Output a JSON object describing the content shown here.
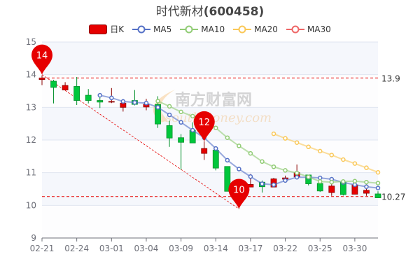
{
  "title": {
    "name": "时代新材",
    "code": "(600458)"
  },
  "legend": [
    {
      "label": "日K",
      "color": "#e60000"
    },
    {
      "label": "MA5",
      "color": "#5470c6"
    },
    {
      "label": "MA10",
      "color": "#91cc75"
    },
    {
      "label": "MA20",
      "color": "#fac858"
    },
    {
      "label": "MA30",
      "color": "#ee6666"
    }
  ],
  "watermark": {
    "cn": "南方财富网",
    "en": "southmoney.com"
  },
  "chart_data": {
    "type": "candlestick",
    "title": "时代新材(600458)",
    "ylim": [
      9,
      15
    ],
    "yticks": [
      9,
      10,
      11,
      12,
      13,
      14,
      15
    ],
    "xtick_labels": [
      "02-21",
      "02-24",
      "03-01",
      "03-04",
      "03-09",
      "03-14",
      "03-17",
      "03-22",
      "03-25",
      "03-30"
    ],
    "xtick_every": 3,
    "up_color": "#e60000",
    "down_color": "#00c73c",
    "candles": [
      {
        "o": 13.85,
        "c": 13.9,
        "h": 13.98,
        "l": 13.68
      },
      {
        "o": 13.8,
        "c": 13.61,
        "h": 13.84,
        "l": 13.12
      },
      {
        "o": 13.53,
        "c": 13.67,
        "h": 13.77,
        "l": 13.52
      },
      {
        "o": 13.64,
        "c": 13.21,
        "h": 13.93,
        "l": 13.07
      },
      {
        "o": 13.37,
        "c": 13.21,
        "h": 13.56,
        "l": 13.12
      },
      {
        "o": 13.21,
        "c": 13.16,
        "h": 13.32,
        "l": 12.98
      },
      {
        "o": 13.16,
        "c": 13.18,
        "h": 13.59,
        "l": 13.13
      },
      {
        "o": 13.0,
        "c": 13.13,
        "h": 13.14,
        "l": 12.87
      },
      {
        "o": 13.21,
        "c": 13.09,
        "h": 13.53,
        "l": 13.06
      },
      {
        "o": 13.01,
        "c": 13.09,
        "h": 13.26,
        "l": 12.91
      },
      {
        "o": 13.09,
        "c": 12.49,
        "h": 13.34,
        "l": 12.37
      },
      {
        "o": 12.44,
        "c": 12.06,
        "h": 12.59,
        "l": 11.79
      },
      {
        "o": 12.07,
        "c": 11.93,
        "h": 12.18,
        "l": 11.09
      },
      {
        "o": 12.3,
        "c": 11.91,
        "h": 12.54,
        "l": 11.91
      },
      {
        "o": 11.59,
        "c": 11.74,
        "h": 11.96,
        "l": 11.39
      },
      {
        "o": 11.69,
        "c": 11.14,
        "h": 11.76,
        "l": 11.07
      },
      {
        "o": 11.19,
        "c": 10.43,
        "h": 11.19,
        "l": 10.43
      },
      {
        "o": 10.45,
        "c": 10.3,
        "h": 10.52,
        "l": 9.89
      },
      {
        "o": 10.56,
        "c": 10.64,
        "h": 10.96,
        "l": 10.56
      },
      {
        "o": 10.71,
        "c": 10.57,
        "h": 10.76,
        "l": 10.39
      },
      {
        "o": 10.56,
        "c": 10.81,
        "h": 10.84,
        "l": 10.56
      },
      {
        "o": 10.8,
        "c": 10.84,
        "h": 10.91,
        "l": 10.7
      },
      {
        "o": 10.87,
        "c": 11.0,
        "h": 11.25,
        "l": 10.84
      },
      {
        "o": 10.93,
        "c": 10.66,
        "h": 10.93,
        "l": 10.61
      },
      {
        "o": 10.67,
        "c": 10.44,
        "h": 10.67,
        "l": 10.41
      },
      {
        "o": 10.39,
        "c": 10.59,
        "h": 10.7,
        "l": 10.29
      },
      {
        "o": 10.71,
        "c": 10.33,
        "h": 10.71,
        "l": 10.3
      },
      {
        "o": 10.34,
        "c": 10.63,
        "h": 10.66,
        "l": 10.34
      },
      {
        "o": 10.37,
        "c": 10.46,
        "h": 10.7,
        "l": 10.29
      },
      {
        "o": 10.35,
        "c": 10.23,
        "h": 10.43,
        "l": 10.23
      }
    ],
    "series": [
      {
        "name": "MA5",
        "start": 5,
        "values": [
          13.37,
          13.29,
          13.18,
          13.15,
          13.13,
          13.0,
          12.77,
          12.54,
          12.3,
          12.07,
          11.74,
          11.38,
          11.11,
          10.88,
          10.66,
          10.63,
          10.76,
          10.86,
          10.86,
          10.84,
          10.8,
          10.7,
          10.63,
          10.57,
          10.53
        ]
      },
      {
        "name": "MA10",
        "start": 10,
        "values": [
          13.19,
          13.03,
          12.86,
          12.73,
          12.57,
          12.37,
          12.07,
          11.82,
          11.59,
          11.34,
          11.18,
          11.07,
          10.99,
          10.87,
          10.73,
          10.71,
          10.73,
          10.74,
          10.71,
          10.68
        ]
      },
      {
        "name": "MA20",
        "start": 20,
        "values": [
          12.19,
          12.05,
          11.92,
          11.79,
          11.66,
          11.54,
          11.4,
          11.28,
          11.15,
          11.01
        ]
      },
      {
        "name": "MA30",
        "start": 30,
        "values": []
      }
    ],
    "markers": [
      {
        "label": "14",
        "index": 0,
        "value": 14.0
      },
      {
        "label": "12",
        "index": 14,
        "value": 11.96
      },
      {
        "label": "10",
        "index": 17,
        "value": 9.89
      }
    ],
    "hlines": [
      {
        "label": "13.9",
        "value": 13.9
      },
      {
        "label": "10.27",
        "value": 10.27
      }
    ],
    "trendline": {
      "from_index": 0,
      "from_value": 14.0,
      "to_index": 17,
      "to_value": 9.89
    }
  }
}
